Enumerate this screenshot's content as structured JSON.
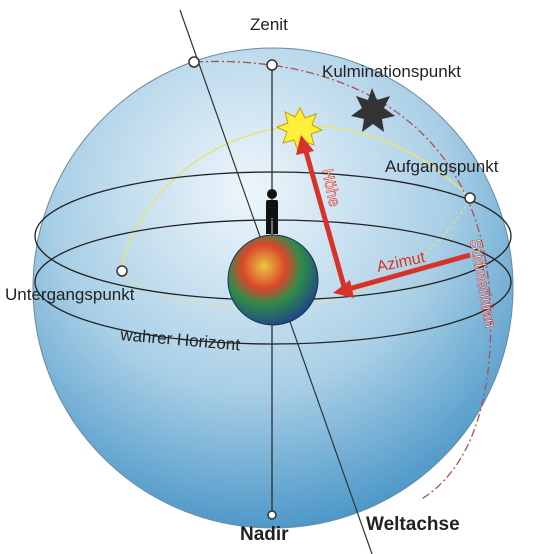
{
  "labels": {
    "zenit": "Zenit",
    "kulminationspunkt": "Kulminationspunkt",
    "aufgangspunkt": "Aufgangspunkt",
    "hoehe": "Höhe",
    "azimut": "Azimut",
    "suedmeridian": "Südmeridian",
    "untergangspunkt": "Untergangspunkt",
    "horizont": "wahrer Horizont",
    "nadir": "Nadir",
    "weltachse": "Weltachse"
  }
}
